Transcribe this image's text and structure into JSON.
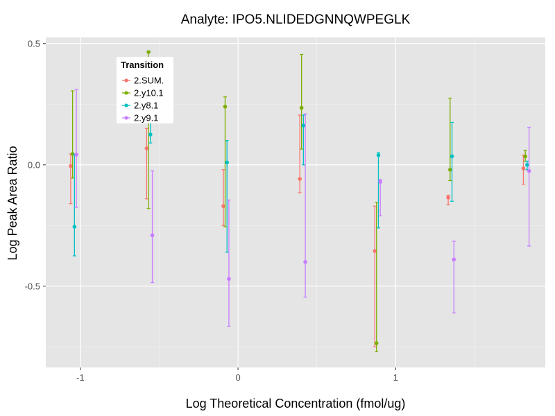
{
  "chart_data": {
    "type": "scatter",
    "title": "Analyte: IPO5.NLIDEDGNNQWPEGLK",
    "xlabel": "Log Theoretical Concentration (fmol/ug)",
    "ylabel": "Log Peak Area Ratio",
    "xlim": [
      -1.22,
      1.95
    ],
    "ylim": [
      -0.835,
      0.525
    ],
    "x_ticks": [
      {
        "value": -1,
        "label": "-1"
      },
      {
        "value": 0,
        "label": "0"
      },
      {
        "value": 1,
        "label": "1"
      }
    ],
    "y_ticks": [
      {
        "value": 0.5,
        "label": "0.5"
      },
      {
        "value": 0.0,
        "label": "0.0"
      },
      {
        "value": -0.5,
        "label": "-0.5"
      }
    ],
    "grid": true,
    "legend": {
      "title": "Transition",
      "position": "top-left"
    },
    "series": [
      {
        "name": "2.SUM.",
        "color": "#F8766D",
        "points": [
          {
            "x": -1.062,
            "y": -0.005,
            "ymin": -0.16,
            "ymax": 0.045
          },
          {
            "x": -0.58,
            "y": 0.068,
            "ymin": -0.14,
            "ymax": 0.15
          },
          {
            "x": -0.093,
            "y": -0.17,
            "ymin": -0.25,
            "ymax": -0.02
          },
          {
            "x": 0.392,
            "y": -0.058,
            "ymin": -0.115,
            "ymax": 0.205
          },
          {
            "x": 0.868,
            "y": -0.355,
            "ymin": -0.75,
            "ymax": -0.17
          },
          {
            "x": 1.334,
            "y": -0.135,
            "ymin": -0.165,
            "ymax": -0.125
          },
          {
            "x": 1.811,
            "y": -0.015,
            "ymin": -0.08,
            "ymax": 0.04
          }
        ]
      },
      {
        "name": "2.y10.1",
        "color": "#7CAE00",
        "points": [
          {
            "x": -1.05,
            "y": 0.045,
            "ymin": -0.055,
            "ymax": 0.305
          },
          {
            "x": -0.568,
            "y": 0.465,
            "ymin": -0.18,
            "ymax": 0.465
          },
          {
            "x": -0.082,
            "y": 0.24,
            "ymin": -0.255,
            "ymax": 0.28
          },
          {
            "x": 0.403,
            "y": 0.235,
            "ymin": 0.065,
            "ymax": 0.455
          },
          {
            "x": 0.879,
            "y": -0.735,
            "ymin": -0.77,
            "ymax": -0.155
          },
          {
            "x": 1.346,
            "y": -0.02,
            "ymin": -0.065,
            "ymax": 0.275
          },
          {
            "x": 1.823,
            "y": 0.035,
            "ymin": 0.015,
            "ymax": 0.06
          }
        ]
      },
      {
        "name": "2.y8.1",
        "color": "#00BFC4",
        "points": [
          {
            "x": -1.038,
            "y": -0.255,
            "ymin": -0.375,
            "ymax": 0.045
          },
          {
            "x": -0.556,
            "y": 0.125,
            "ymin": 0.09,
            "ymax": 0.175
          },
          {
            "x": -0.07,
            "y": 0.01,
            "ymin": -0.36,
            "ymax": 0.1
          },
          {
            "x": 0.415,
            "y": 0.162,
            "ymin": 0.0,
            "ymax": 0.205
          },
          {
            "x": 0.891,
            "y": 0.04,
            "ymin": -0.26,
            "ymax": 0.05
          },
          {
            "x": 1.358,
            "y": 0.035,
            "ymin": -0.15,
            "ymax": 0.175
          },
          {
            "x": 1.835,
            "y": 0.0,
            "ymin": -0.02,
            "ymax": 0.015
          }
        ]
      },
      {
        "name": "2.y9.1",
        "color": "#C77CFF",
        "points": [
          {
            "x": -1.026,
            "y": 0.042,
            "ymin": -0.175,
            "ymax": 0.31
          },
          {
            "x": -0.544,
            "y": -0.29,
            "ymin": -0.485,
            "ymax": -0.025
          },
          {
            "x": -0.058,
            "y": -0.47,
            "ymin": -0.665,
            "ymax": -0.145
          },
          {
            "x": 0.427,
            "y": -0.4,
            "ymin": -0.545,
            "ymax": 0.21
          },
          {
            "x": 0.903,
            "y": -0.07,
            "ymin": -0.21,
            "ymax": -0.06
          },
          {
            "x": 1.37,
            "y": -0.39,
            "ymin": -0.61,
            "ymax": -0.315
          },
          {
            "x": 1.847,
            "y": -0.025,
            "ymin": -0.335,
            "ymax": 0.155
          }
        ]
      }
    ]
  }
}
